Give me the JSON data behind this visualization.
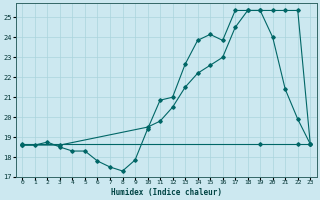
{
  "title": "",
  "xlabel": "Humidex (Indice chaleur)",
  "bg_color": "#cce8f0",
  "line_color": "#006666",
  "xlim": [
    -0.5,
    23.5
  ],
  "ylim": [
    17,
    25.7
  ],
  "yticks": [
    17,
    18,
    19,
    20,
    21,
    22,
    23,
    24,
    25
  ],
  "xticks": [
    0,
    1,
    2,
    3,
    4,
    5,
    6,
    7,
    8,
    9,
    10,
    11,
    12,
    13,
    14,
    15,
    16,
    17,
    18,
    19,
    20,
    21,
    22,
    23
  ],
  "xtick_labels": [
    "0",
    "1",
    "2",
    "3",
    "4",
    "5",
    "6",
    "7",
    "8",
    "9",
    "10",
    "11",
    "12",
    "13",
    "14",
    "15",
    "16",
    "17",
    "18",
    "19",
    "20",
    "21",
    "22",
    "23"
  ],
  "line1_x": [
    0,
    1,
    2,
    3,
    4,
    5,
    6,
    7,
    8,
    9,
    10,
    11,
    12,
    13,
    14,
    15,
    16,
    17,
    18,
    19,
    20,
    21,
    22,
    23
  ],
  "line1_y": [
    18.6,
    18.6,
    18.75,
    18.5,
    18.3,
    18.3,
    17.8,
    17.5,
    17.3,
    17.85,
    19.4,
    20.85,
    21.0,
    22.65,
    23.85,
    24.15,
    23.85,
    25.35,
    25.35,
    25.35,
    24.0,
    21.4,
    19.9,
    18.65
  ],
  "line2_x": [
    0,
    3,
    10,
    11,
    12,
    13,
    14,
    15,
    16,
    17,
    18,
    19,
    20,
    21,
    22,
    23
  ],
  "line2_y": [
    18.6,
    18.6,
    19.5,
    19.8,
    20.5,
    21.5,
    22.2,
    22.6,
    23.0,
    24.5,
    25.35,
    25.35,
    25.35,
    25.35,
    25.35,
    18.65
  ],
  "line3_x": [
    0,
    19,
    22,
    23
  ],
  "line3_y": [
    18.65,
    18.65,
    18.65,
    18.65
  ]
}
